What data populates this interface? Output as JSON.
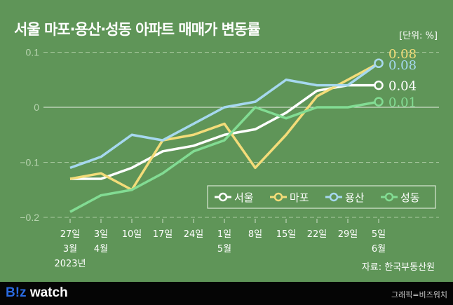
{
  "title": "서울 마포·용산·성동 아파트 매매가 변동률",
  "unit": "[단위: %]",
  "source": "자료: 한국부동산원",
  "footer": {
    "logo_b": "B!z",
    "logo_rest": " watch",
    "credit": "그래픽=비즈워치"
  },
  "chart_data": {
    "type": "line",
    "title": "서울 마포·용산·성동 아파트 매매가 변동률",
    "ylabel": "[단위: %]",
    "ylim": [
      -0.2,
      0.1
    ],
    "yticks": [
      0.1,
      0,
      -0.1,
      -0.2
    ],
    "ytick_labels": [
      "0.1",
      "0",
      "−0.1",
      "−0.2"
    ],
    "grid": "dashed horizontal",
    "legend": "bottom-right",
    "categories": [
      [
        "27일",
        "3월",
        "2023년"
      ],
      [
        "3일",
        "4월"
      ],
      [
        "10일"
      ],
      [
        "17일"
      ],
      [
        "24일"
      ],
      [
        "1일",
        "5월"
      ],
      [
        "8일"
      ],
      [
        "15일"
      ],
      [
        "22일"
      ],
      [
        "29일"
      ],
      [
        "5일",
        "6월"
      ]
    ],
    "series": [
      {
        "name": "서울",
        "color": "#ffffff",
        "values": [
          -0.13,
          -0.13,
          -0.11,
          -0.08,
          -0.07,
          -0.05,
          -0.04,
          -0.01,
          0.03,
          0.04,
          0.04
        ],
        "end_label": "0.04"
      },
      {
        "name": "마포",
        "color": "#f3dc79",
        "values": [
          -0.13,
          -0.12,
          -0.15,
          -0.06,
          -0.05,
          -0.03,
          -0.11,
          -0.05,
          0.02,
          0.05,
          0.08
        ],
        "end_label": "0.08"
      },
      {
        "name": "용산",
        "color": "#a6d8ef",
        "values": [
          -0.11,
          -0.09,
          -0.05,
          -0.06,
          -0.03,
          0.0,
          0.01,
          0.05,
          0.04,
          0.04,
          0.08
        ],
        "end_label": "0.08"
      },
      {
        "name": "성동",
        "color": "#82dc93",
        "values": [
          -0.19,
          -0.16,
          -0.15,
          -0.12,
          -0.08,
          -0.06,
          0.0,
          -0.02,
          0.0,
          0.0,
          0.01
        ],
        "end_label": "0.01"
      }
    ]
  }
}
